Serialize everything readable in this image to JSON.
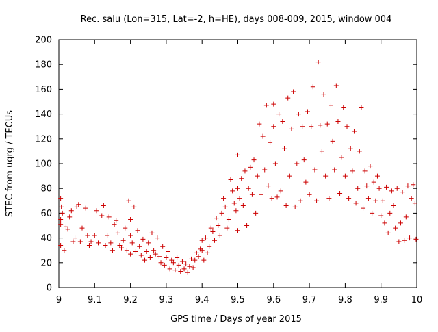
{
  "chart_data": {
    "type": "scatter",
    "title": "Rec. salu (Lon=315, Lat=-2, h=HE), days 008-009, 2015, window 004",
    "xlabel": "GPS time / Days of year 2015",
    "ylabel": "STEC from uqrg / TECUs",
    "xlim": [
      9.0,
      10.0
    ],
    "ylim": [
      0,
      200
    ],
    "xticks": [
      "9",
      "9.1",
      "9.2",
      "9.3",
      "9.4",
      "9.5",
      "9.6",
      "9.7",
      "9.8",
      "9.9",
      "10"
    ],
    "yticks": [
      "0",
      "20",
      "40",
      "60",
      "80",
      "100",
      "120",
      "140",
      "160",
      "180",
      "200"
    ],
    "marker": "+",
    "grid": false,
    "series": [
      {
        "name": "STEC",
        "color": "#cc0000",
        "points": [
          [
            9.005,
            72
          ],
          [
            9.005,
            34
          ],
          [
            9.005,
            51
          ],
          [
            9.005,
            55
          ],
          [
            9.007,
            65
          ],
          [
            9.01,
            60
          ],
          [
            9.015,
            30
          ],
          [
            9.02,
            49
          ],
          [
            9.025,
            47
          ],
          [
            9.03,
            57
          ],
          [
            9.035,
            62
          ],
          [
            9.04,
            37
          ],
          [
            9.045,
            40
          ],
          [
            9.05,
            65
          ],
          [
            9.055,
            67
          ],
          [
            9.06,
            37
          ],
          [
            9.065,
            48
          ],
          [
            9.075,
            64
          ],
          [
            9.08,
            42
          ],
          [
            9.085,
            34
          ],
          [
            9.09,
            37
          ],
          [
            9.1,
            42
          ],
          [
            9.105,
            62
          ],
          [
            9.11,
            36
          ],
          [
            9.12,
            58
          ],
          [
            9.125,
            66
          ],
          [
            9.13,
            34
          ],
          [
            9.135,
            42
          ],
          [
            9.14,
            57
          ],
          [
            9.145,
            36
          ],
          [
            9.15,
            30
          ],
          [
            9.155,
            51
          ],
          [
            9.16,
            54
          ],
          [
            9.165,
            44
          ],
          [
            9.17,
            34
          ],
          [
            9.175,
            32
          ],
          [
            9.18,
            38
          ],
          [
            9.185,
            48
          ],
          [
            9.19,
            30
          ],
          [
            9.195,
            70
          ],
          [
            9.2,
            55
          ],
          [
            9.2,
            42
          ],
          [
            9.2,
            27
          ],
          [
            9.205,
            36
          ],
          [
            9.21,
            65
          ],
          [
            9.215,
            29
          ],
          [
            9.22,
            46
          ],
          [
            9.225,
            33
          ],
          [
            9.23,
            26
          ],
          [
            9.235,
            39
          ],
          [
            9.24,
            22
          ],
          [
            9.245,
            29
          ],
          [
            9.25,
            36
          ],
          [
            9.255,
            24
          ],
          [
            9.26,
            44
          ],
          [
            9.265,
            30
          ],
          [
            9.27,
            27
          ],
          [
            9.275,
            40
          ],
          [
            9.28,
            25
          ],
          [
            9.285,
            20
          ],
          [
            9.29,
            33
          ],
          [
            9.295,
            18
          ],
          [
            9.3,
            24
          ],
          [
            9.305,
            29
          ],
          [
            9.31,
            15
          ],
          [
            9.315,
            22
          ],
          [
            9.32,
            20
          ],
          [
            9.325,
            14
          ],
          [
            9.33,
            24
          ],
          [
            9.335,
            18
          ],
          [
            9.34,
            13
          ],
          [
            9.345,
            21
          ],
          [
            9.35,
            15
          ],
          [
            9.355,
            19
          ],
          [
            9.36,
            12
          ],
          [
            9.365,
            17
          ],
          [
            9.37,
            23
          ],
          [
            9.375,
            16
          ],
          [
            9.38,
            22
          ],
          [
            9.385,
            28
          ],
          [
            9.39,
            25
          ],
          [
            9.395,
            31
          ],
          [
            9.4,
            38
          ],
          [
            9.4,
            30
          ],
          [
            9.405,
            22
          ],
          [
            9.41,
            40
          ],
          [
            9.415,
            28
          ],
          [
            9.42,
            33
          ],
          [
            9.425,
            48
          ],
          [
            9.43,
            45
          ],
          [
            9.435,
            38
          ],
          [
            9.44,
            56
          ],
          [
            9.445,
            50
          ],
          [
            9.45,
            42
          ],
          [
            9.455,
            60
          ],
          [
            9.46,
            72
          ],
          [
            9.465,
            65
          ],
          [
            9.47,
            48
          ],
          [
            9.475,
            55
          ],
          [
            9.48,
            87
          ],
          [
            9.485,
            78
          ],
          [
            9.49,
            68
          ],
          [
            9.495,
            62
          ],
          [
            9.5,
            107
          ],
          [
            9.5,
            80
          ],
          [
            9.5,
            46
          ],
          [
            9.505,
            72
          ],
          [
            9.51,
            88
          ],
          [
            9.515,
            66
          ],
          [
            9.52,
            94
          ],
          [
            9.525,
            50
          ],
          [
            9.53,
            80
          ],
          [
            9.535,
            97
          ],
          [
            9.54,
            75
          ],
          [
            9.545,
            103
          ],
          [
            9.55,
            60
          ],
          [
            9.555,
            90
          ],
          [
            9.56,
            132
          ],
          [
            9.565,
            75
          ],
          [
            9.57,
            122
          ],
          [
            9.575,
            95
          ],
          [
            9.58,
            147
          ],
          [
            9.585,
            82
          ],
          [
            9.59,
            117
          ],
          [
            9.595,
            72
          ],
          [
            9.6,
            148
          ],
          [
            9.6,
            130
          ],
          [
            9.605,
            100
          ],
          [
            9.61,
            73
          ],
          [
            9.615,
            140
          ],
          [
            9.62,
            78
          ],
          [
            9.625,
            134
          ],
          [
            9.63,
            112
          ],
          [
            9.635,
            66
          ],
          [
            9.64,
            153
          ],
          [
            9.645,
            90
          ],
          [
            9.65,
            128
          ],
          [
            9.655,
            158
          ],
          [
            9.66,
            65
          ],
          [
            9.665,
            100
          ],
          [
            9.67,
            140
          ],
          [
            9.675,
            70
          ],
          [
            9.68,
            130
          ],
          [
            9.685,
            103
          ],
          [
            9.69,
            85
          ],
          [
            9.695,
            142
          ],
          [
            9.7,
            75
          ],
          [
            9.705,
            130
          ],
          [
            9.71,
            162
          ],
          [
            9.715,
            95
          ],
          [
            9.72,
            70
          ],
          [
            9.725,
            182
          ],
          [
            9.73,
            131
          ],
          [
            9.735,
            110
          ],
          [
            9.74,
            156
          ],
          [
            9.745,
            90
          ],
          [
            9.75,
            132
          ],
          [
            9.755,
            72
          ],
          [
            9.76,
            147
          ],
          [
            9.765,
            118
          ],
          [
            9.77,
            95
          ],
          [
            9.775,
            163
          ],
          [
            9.78,
            134
          ],
          [
            9.785,
            76
          ],
          [
            9.79,
            105
          ],
          [
            9.795,
            145
          ],
          [
            9.8,
            90
          ],
          [
            9.805,
            130
          ],
          [
            9.81,
            72
          ],
          [
            9.815,
            112
          ],
          [
            9.82,
            94
          ],
          [
            9.825,
            126
          ],
          [
            9.83,
            68
          ],
          [
            9.835,
            80
          ],
          [
            9.84,
            110
          ],
          [
            9.845,
            145
          ],
          [
            9.85,
            64
          ],
          [
            9.855,
            94
          ],
          [
            9.86,
            82
          ],
          [
            9.865,
            72
          ],
          [
            9.87,
            98
          ],
          [
            9.875,
            60
          ],
          [
            9.88,
            85
          ],
          [
            9.885,
            70
          ],
          [
            9.89,
            90
          ],
          [
            9.895,
            80
          ],
          [
            9.9,
            58
          ],
          [
            9.905,
            70
          ],
          [
            9.91,
            52
          ],
          [
            9.915,
            81
          ],
          [
            9.92,
            44
          ],
          [
            9.925,
            60
          ],
          [
            9.93,
            78
          ],
          [
            9.935,
            66
          ],
          [
            9.94,
            48
          ],
          [
            9.945,
            80
          ],
          [
            9.95,
            37
          ],
          [
            9.955,
            52
          ],
          [
            9.96,
            77
          ],
          [
            9.965,
            38
          ],
          [
            9.97,
            57
          ],
          [
            9.975,
            82
          ],
          [
            9.98,
            40
          ],
          [
            9.985,
            72
          ],
          [
            9.99,
            83
          ],
          [
            9.995,
            68
          ],
          [
            9.998,
            39
          ]
        ]
      }
    ]
  }
}
